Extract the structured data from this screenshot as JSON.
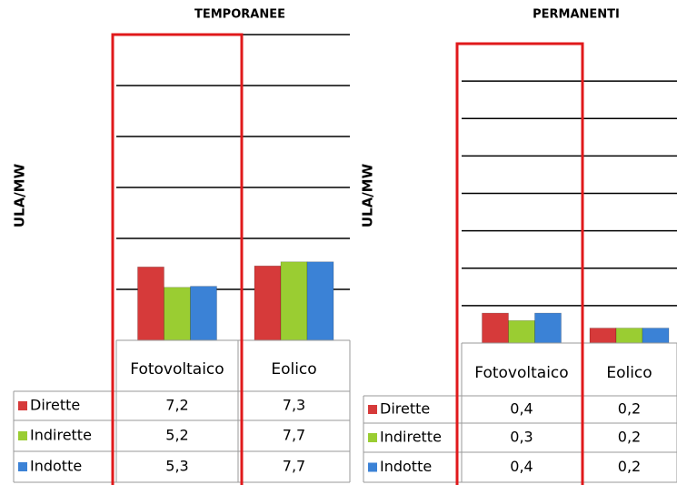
{
  "chart_data": [
    {
      "type": "bar",
      "title": "TEMPORANEE",
      "y_label": "ULA/MW",
      "categories": [
        "Fotovoltaico",
        "Eolico"
      ],
      "series": [
        {
          "name": "Dirette",
          "color": "#d63a3a",
          "values": [
            7.2,
            7.3
          ],
          "value_labels": [
            "7,2",
            "7,3"
          ]
        },
        {
          "name": "Indirette",
          "color": "#9acd32",
          "values": [
            5.2,
            7.7
          ],
          "value_labels": [
            "5,2",
            "7,7"
          ]
        },
        {
          "name": "Indotte",
          "color": "#3b82d6",
          "values": [
            5.3,
            7.7
          ],
          "value_labels": [
            "5,3",
            "7,7"
          ]
        }
      ],
      "ylim": [
        0,
        30
      ],
      "yticks": [
        0,
        5,
        10,
        15,
        20,
        25,
        30
      ],
      "grid": true
    },
    {
      "type": "bar",
      "title": "PERMANENTI",
      "y_label": "ULA/MW",
      "categories": [
        "Fotovoltaico",
        "Eolico"
      ],
      "series": [
        {
          "name": "Dirette",
          "color": "#d63a3a",
          "values": [
            0.4,
            0.2
          ],
          "value_labels": [
            "0,4",
            "0,2"
          ]
        },
        {
          "name": "Indirette",
          "color": "#9acd32",
          "values": [
            0.3,
            0.2
          ],
          "value_labels": [
            "0,3",
            "0,2"
          ]
        },
        {
          "name": "Indotte",
          "color": "#3b82d6",
          "values": [
            0.4,
            0.2
          ],
          "value_labels": [
            "0,4",
            "0,2"
          ]
        }
      ],
      "ylim": [
        0,
        4
      ],
      "yticks": [
        0,
        0.5,
        1,
        1.5,
        2,
        2.5,
        3,
        3.5
      ],
      "grid": true
    }
  ]
}
